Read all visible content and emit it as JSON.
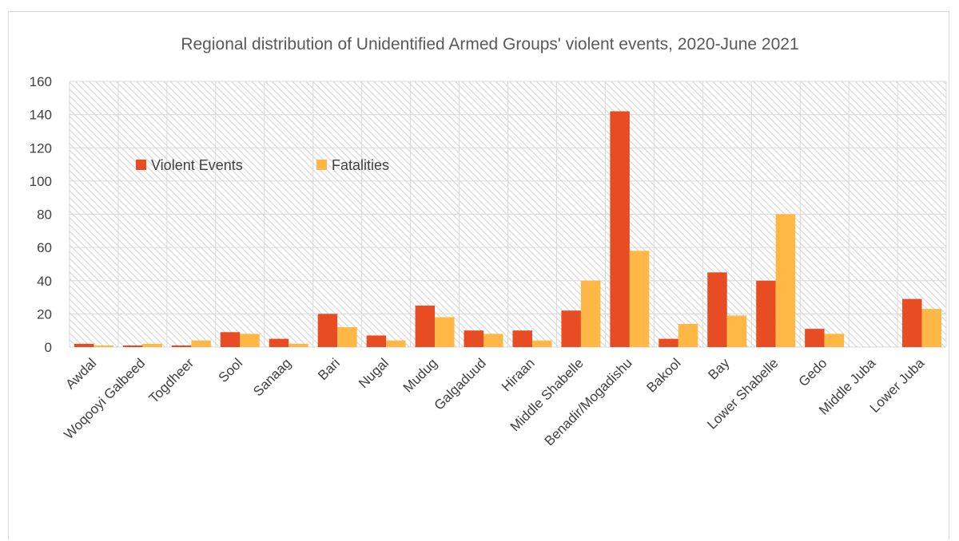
{
  "chart_data": {
    "type": "bar",
    "title": "Regional distribution of Unidentified Armed Groups' violent events,  2020-June 2021",
    "xlabel": "",
    "ylabel": "",
    "ylim": [
      0,
      160
    ],
    "yticks": [
      0,
      20,
      40,
      60,
      80,
      100,
      120,
      140,
      160
    ],
    "grid": true,
    "legend_position": "upper-left inside plot",
    "categories": [
      "Awdal",
      "Woqooyi Galbeed",
      "Togdheer",
      "Sool",
      "Sanaag",
      "Bari",
      "Nugal",
      "Mudug",
      "Galgaduud",
      "Hiraan",
      "Middle Shabelle",
      "Benadir/Mogadishu",
      "Bakool",
      "Bay",
      "Lower Shabelle",
      "Gedo",
      "Middle Juba",
      "Lower Juba"
    ],
    "series": [
      {
        "name": "Violent Events",
        "color": "#E84C22",
        "values": [
          2,
          1,
          1,
          9,
          5,
          20,
          7,
          25,
          10,
          10,
          22,
          142,
          5,
          45,
          40,
          11,
          0,
          29
        ]
      },
      {
        "name": "Fatalities",
        "color": "#FFB845",
        "values": [
          1,
          2,
          4,
          8,
          2,
          12,
          4,
          18,
          8,
          4,
          40,
          58,
          14,
          19,
          80,
          8,
          0,
          23
        ]
      }
    ]
  }
}
